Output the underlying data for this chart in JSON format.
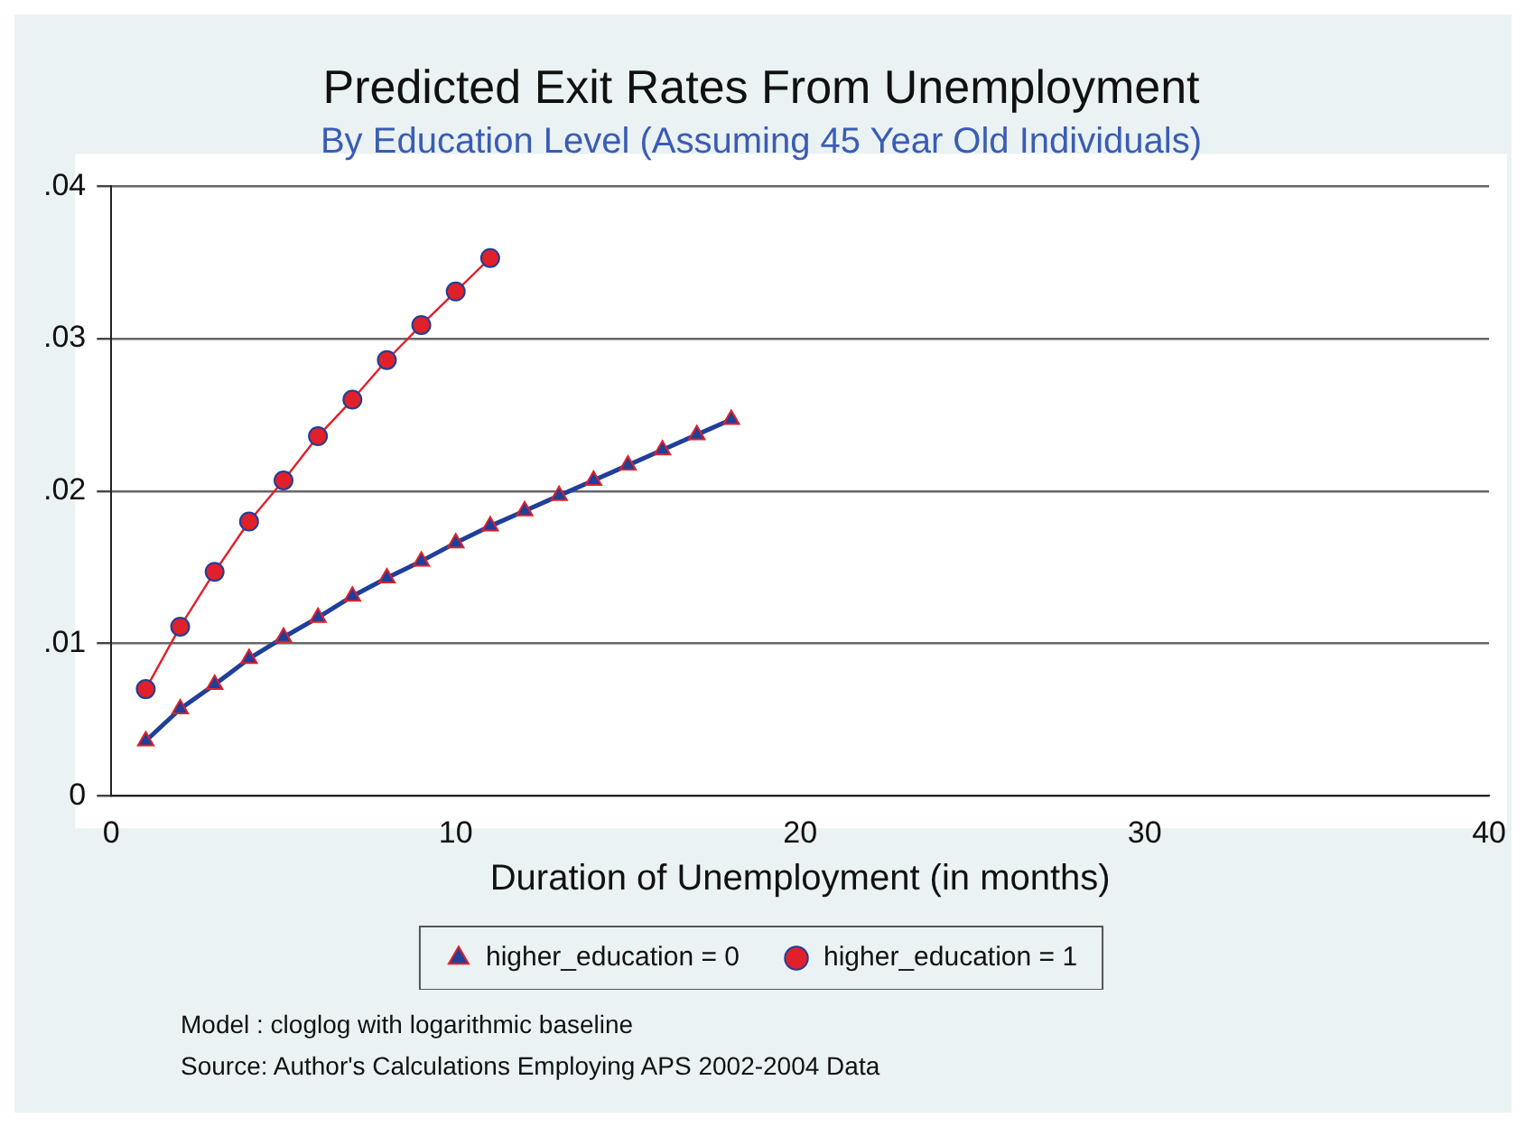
{
  "chart_data": {
    "type": "line",
    "title": "Predicted Exit Rates From Unemployment",
    "subtitle": "By Education Level (Assuming 45 Year Old Individuals)",
    "xlabel": "Duration of Unemployment (in months)",
    "xlim": [
      0,
      40
    ],
    "xticks": [
      0,
      10,
      20,
      30,
      40
    ],
    "ylim": [
      0,
      0.04
    ],
    "yticks": [
      0,
      {
        "value": 0.01,
        "label": ".01"
      },
      {
        "value": 0.02,
        "label": ".02"
      },
      {
        "value": 0.03,
        "label": ".03"
      },
      {
        "value": 0.04,
        "label": ".04"
      }
    ],
    "grid": "y",
    "legend": "bottom",
    "series": [
      {
        "name": "higher_education = 0",
        "color": "#1f3f99",
        "marker": "triangle",
        "x": [
          1,
          2,
          3,
          4,
          5,
          6,
          7,
          8,
          9,
          10,
          11,
          12,
          13,
          14,
          15,
          16,
          17,
          18
        ],
        "values": [
          0.0036,
          0.0057,
          0.0073,
          0.009,
          0.0104,
          0.0117,
          0.0131,
          0.0143,
          0.0154,
          0.0166,
          0.0177,
          0.0187,
          0.0197,
          0.0207,
          0.0217,
          0.0227,
          0.0237,
          0.0247
        ]
      },
      {
        "name": "higher_education = 1",
        "color": "#e0202a",
        "marker": "circle",
        "x": [
          1,
          2,
          3,
          4,
          5,
          6,
          7,
          8,
          9,
          10,
          11
        ],
        "values": [
          0.007,
          0.0111,
          0.0147,
          0.018,
          0.0207,
          0.0236,
          0.026,
          0.0286,
          0.0309,
          0.0331,
          0.0353
        ]
      }
    ],
    "annotations": [
      "Model : cloglog with logarithmic baseline",
      "Source: Author's Calculations Employing APS 2002-2004 Data"
    ]
  }
}
